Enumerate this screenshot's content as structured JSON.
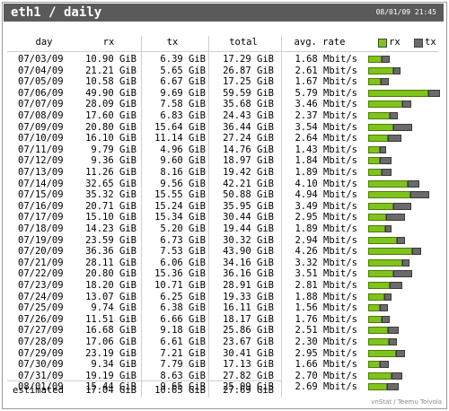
{
  "header": {
    "title": "eth1 / daily",
    "timestamp": "08/01/09 21:45"
  },
  "columns": {
    "day": "day",
    "rx": "rx",
    "tx": "tx",
    "total": "total",
    "rate": "avg. rate"
  },
  "legend": {
    "rx_label": "rx",
    "tx_label": "tx",
    "rx_color": "#7fc41a",
    "tx_color": "#6a6a6a"
  },
  "rows": [
    {
      "day": "07/03/09",
      "rx": "10.90 GiB",
      "tx": "6.39 GiB",
      "total": "17.29 GiB",
      "rate": "1.68 Mbit/s"
    },
    {
      "day": "07/04/09",
      "rx": "21.21 GiB",
      "tx": "5.65 GiB",
      "total": "26.87 GiB",
      "rate": "2.61 Mbit/s"
    },
    {
      "day": "07/05/09",
      "rx": "10.58 GiB",
      "tx": "6.67 GiB",
      "total": "17.25 GiB",
      "rate": "1.67 Mbit/s"
    },
    {
      "day": "07/06/09",
      "rx": "49.90 GiB",
      "tx": "9.69 GiB",
      "total": "59.59 GiB",
      "rate": "5.79 Mbit/s"
    },
    {
      "day": "07/07/09",
      "rx": "28.09 GiB",
      "tx": "7.58 GiB",
      "total": "35.68 GiB",
      "rate": "3.46 Mbit/s"
    },
    {
      "day": "07/08/09",
      "rx": "17.60 GiB",
      "tx": "6.83 GiB",
      "total": "24.43 GiB",
      "rate": "2.37 Mbit/s"
    },
    {
      "day": "07/09/09",
      "rx": "20.80 GiB",
      "tx": "15.64 GiB",
      "total": "36.44 GiB",
      "rate": "3.54 Mbit/s"
    },
    {
      "day": "07/10/09",
      "rx": "16.10 GiB",
      "tx": "11.14 GiB",
      "total": "27.24 GiB",
      "rate": "2.64 Mbit/s"
    },
    {
      "day": "07/11/09",
      "rx": "9.79 GiB",
      "tx": "4.96 GiB",
      "total": "14.76 GiB",
      "rate": "1.43 Mbit/s"
    },
    {
      "day": "07/12/09",
      "rx": "9.36 GiB",
      "tx": "9.60 GiB",
      "total": "18.97 GiB",
      "rate": "1.84 Mbit/s"
    },
    {
      "day": "07/13/09",
      "rx": "11.26 GiB",
      "tx": "8.16 GiB",
      "total": "19.42 GiB",
      "rate": "1.89 Mbit/s"
    },
    {
      "day": "07/14/09",
      "rx": "32.65 GiB",
      "tx": "9.56 GiB",
      "total": "42.21 GiB",
      "rate": "4.10 Mbit/s"
    },
    {
      "day": "07/15/09",
      "rx": "35.32 GiB",
      "tx": "15.55 GiB",
      "total": "50.88 GiB",
      "rate": "4.94 Mbit/s"
    },
    {
      "day": "07/16/09",
      "rx": "20.71 GiB",
      "tx": "15.24 GiB",
      "total": "35.95 GiB",
      "rate": "3.49 Mbit/s"
    },
    {
      "day": "07/17/09",
      "rx": "15.10 GiB",
      "tx": "15.34 GiB",
      "total": "30.44 GiB",
      "rate": "2.95 Mbit/s"
    },
    {
      "day": "07/18/09",
      "rx": "14.23 GiB",
      "tx": "5.20 GiB",
      "total": "19.44 GiB",
      "rate": "1.89 Mbit/s"
    },
    {
      "day": "07/19/09",
      "rx": "23.59 GiB",
      "tx": "6.73 GiB",
      "total": "30.32 GiB",
      "rate": "2.94 Mbit/s"
    },
    {
      "day": "07/20/09",
      "rx": "36.36 GiB",
      "tx": "7.53 GiB",
      "total": "43.90 GiB",
      "rate": "4.26 Mbit/s"
    },
    {
      "day": "07/21/09",
      "rx": "28.11 GiB",
      "tx": "6.06 GiB",
      "total": "34.16 GiB",
      "rate": "3.32 Mbit/s"
    },
    {
      "day": "07/22/09",
      "rx": "20.80 GiB",
      "tx": "15.36 GiB",
      "total": "36.16 GiB",
      "rate": "3.51 Mbit/s"
    },
    {
      "day": "07/23/09",
      "rx": "18.20 GiB",
      "tx": "10.71 GiB",
      "total": "28.91 GiB",
      "rate": "2.81 Mbit/s"
    },
    {
      "day": "07/24/09",
      "rx": "13.07 GiB",
      "tx": "6.25 GiB",
      "total": "19.33 GiB",
      "rate": "1.88 Mbit/s"
    },
    {
      "day": "07/25/09",
      "rx": "9.74 GiB",
      "tx": "6.38 GiB",
      "total": "16.11 GiB",
      "rate": "1.56 Mbit/s"
    },
    {
      "day": "07/26/09",
      "rx": "11.51 GiB",
      "tx": "6.66 GiB",
      "total": "18.17 GiB",
      "rate": "1.76 Mbit/s"
    },
    {
      "day": "07/27/09",
      "rx": "16.68 GiB",
      "tx": "9.18 GiB",
      "total": "25.86 GiB",
      "rate": "2.51 Mbit/s"
    },
    {
      "day": "07/28/09",
      "rx": "17.06 GiB",
      "tx": "6.61 GiB",
      "total": "23.67 GiB",
      "rate": "2.30 Mbit/s"
    },
    {
      "day": "07/29/09",
      "rx": "23.19 GiB",
      "tx": "7.21 GiB",
      "total": "30.41 GiB",
      "rate": "2.95 Mbit/s"
    },
    {
      "day": "07/30/09",
      "rx": "9.34 GiB",
      "tx": "7.79 GiB",
      "total": "17.13 GiB",
      "rate": "1.66 Mbit/s"
    },
    {
      "day": "07/31/09",
      "rx": "19.19 GiB",
      "tx": "8.63 GiB",
      "total": "27.82 GiB",
      "rate": "2.70 Mbit/s"
    },
    {
      "day": "08/01/09",
      "rx": "15.44 GiB",
      "tx": "9.65 GiB",
      "total": "25.09 GiB",
      "rate": "2.69 Mbit/s"
    }
  ],
  "estimated": {
    "label": "estimated",
    "rx": "17.04 GiB",
    "tx": "10.65 GiB",
    "total": "27.69 GiB"
  },
  "footer": "vnStat / Teemu Toivola"
}
